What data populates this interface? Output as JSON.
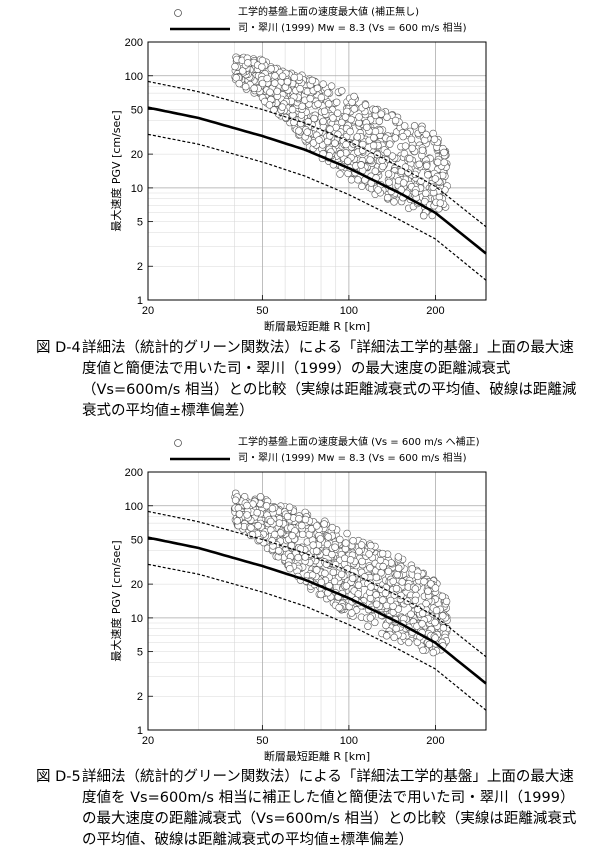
{
  "chart_data": [
    {
      "type": "scatter",
      "title": "",
      "xlabel": "断層最短距離 R [km]",
      "ylabel": "最大速度 PGV [cm/sec]",
      "xscale": "log",
      "yscale": "log",
      "xlim": [
        20,
        300
      ],
      "ylim": [
        1,
        200
      ],
      "x_ticks": [
        "20",
        "50",
        "100",
        "200"
      ],
      "y_ticks": [
        "1",
        "2",
        "5",
        "10",
        "20",
        "50",
        "100",
        "200"
      ],
      "grid": true,
      "legend_position": "top",
      "legend": [
        {
          "symbol": "open-circle",
          "label": "工学的基盤上面の速度最大値 (補正無し)"
        },
        {
          "symbol": "thick-line",
          "label": "司・翠川 (1999) Mw = 8.3 (Vs = 600 m/s 相当)"
        }
      ],
      "series": [
        {
          "name": "工学的基盤上面の速度最大値 (補正無し)",
          "kind": "scatter-cloud",
          "x_range": [
            40,
            220
          ],
          "envelope_upper": [
            [
              40,
              150
            ],
            [
              50,
              140
            ],
            [
              60,
              110
            ],
            [
              70,
              100
            ],
            [
              90,
              80
            ],
            [
              120,
              55
            ],
            [
              150,
              42
            ],
            [
              200,
              32
            ],
            [
              220,
              20
            ]
          ],
          "envelope_lower": [
            [
              40,
              90
            ],
            [
              50,
              60
            ],
            [
              60,
              40
            ],
            [
              70,
              25
            ],
            [
              90,
              14
            ],
            [
              120,
              9
            ],
            [
              150,
              7
            ],
            [
              200,
              5
            ],
            [
              220,
              7
            ]
          ]
        },
        {
          "name": "司・翠川 (1999) Mw = 8.3 (Vs = 600 m/s 相当)",
          "kind": "mean",
          "x": [
            20,
            30,
            50,
            70,
            100,
            150,
            200,
            300
          ],
          "y": [
            52,
            42,
            29,
            22,
            15,
            9,
            6,
            2.6
          ]
        },
        {
          "kind": "mean + sigma",
          "x": [
            20,
            30,
            50,
            70,
            100,
            150,
            200,
            300
          ],
          "y": [
            89,
            72,
            50,
            38,
            26,
            15.5,
            10.3,
            4.5
          ]
        },
        {
          "kind": "mean - sigma",
          "x": [
            20,
            30,
            50,
            70,
            100,
            150,
            200,
            300
          ],
          "y": [
            30,
            24.5,
            17,
            12.8,
            8.7,
            5.2,
            3.5,
            1.5
          ]
        }
      ]
    },
    {
      "type": "scatter",
      "title": "",
      "xlabel": "断層最短距離 R [km]",
      "ylabel": "最大速度 PGV [cm/sec]",
      "xscale": "log",
      "yscale": "log",
      "xlim": [
        20,
        300
      ],
      "ylim": [
        1,
        200
      ],
      "x_ticks": [
        "20",
        "50",
        "100",
        "200"
      ],
      "y_ticks": [
        "1",
        "2",
        "5",
        "10",
        "20",
        "50",
        "100",
        "200"
      ],
      "grid": true,
      "legend_position": "top",
      "legend": [
        {
          "symbol": "open-circle",
          "label": "工学的基盤上面の速度最大値 (Vs = 600 m/s へ補正)"
        },
        {
          "symbol": "thick-line",
          "label": "司・翠川 (1999) Mw = 8.3 (Vs = 600 m/s 相当)"
        }
      ],
      "series": [
        {
          "name": "工学的基盤上面の速度最大値 (Vs = 600 m/s へ補正)",
          "kind": "scatter-cloud",
          "x_range": [
            40,
            220
          ],
          "envelope_upper": [
            [
              40,
              130
            ],
            [
              50,
              120
            ],
            [
              60,
              100
            ],
            [
              70,
              90
            ],
            [
              90,
              65
            ],
            [
              120,
              45
            ],
            [
              150,
              35
            ],
            [
              200,
              22
            ],
            [
              220,
              15
            ]
          ],
          "envelope_lower": [
            [
              40,
              70
            ],
            [
              50,
              45
            ],
            [
              60,
              30
            ],
            [
              70,
              20
            ],
            [
              90,
              12
            ],
            [
              120,
              8
            ],
            [
              150,
              6
            ],
            [
              200,
              4.5
            ],
            [
              220,
              6
            ]
          ]
        },
        {
          "name": "司・翠川 (1999) Mw = 8.3 (Vs = 600 m/s 相当)",
          "kind": "mean",
          "x": [
            20,
            30,
            50,
            70,
            100,
            150,
            200,
            300
          ],
          "y": [
            52,
            42,
            29,
            22,
            15,
            9,
            6,
            2.6
          ]
        },
        {
          "kind": "mean + sigma",
          "x": [
            20,
            30,
            50,
            70,
            100,
            150,
            200,
            300
          ],
          "y": [
            89,
            72,
            50,
            38,
            26,
            15.5,
            10.3,
            4.5
          ]
        },
        {
          "kind": "mean - sigma",
          "x": [
            20,
            30,
            50,
            70,
            100,
            150,
            200,
            300
          ],
          "y": [
            30,
            24.5,
            17,
            12.8,
            8.7,
            5.2,
            3.5,
            1.5
          ]
        }
      ]
    }
  ],
  "captions": [
    {
      "id": "図 D-4",
      "text": "詳細法（統計的グリーン関数法）による「詳細法工学的基盤」上面の最大速度値と簡便法で用いた司・翠川（1999）の最大速度の距離減衰式（Vs=600m/s 相当）との比較（実線は距離減衰式の平均値、破線は距離減衰式の平均値±標準偏差）"
    },
    {
      "id": "図 D-5",
      "text": "詳細法（統計的グリーン関数法）による「詳細法工学的基盤」上面の最大速度値を Vs=600m/s 相当に補正した値と簡便法で用いた司・翠川（1999）の最大速度の距離減衰式（Vs=600m/s 相当）との比較（実線は距離減衰式の平均値、破線は距離減衰式の平均値±標準偏差）"
    }
  ]
}
